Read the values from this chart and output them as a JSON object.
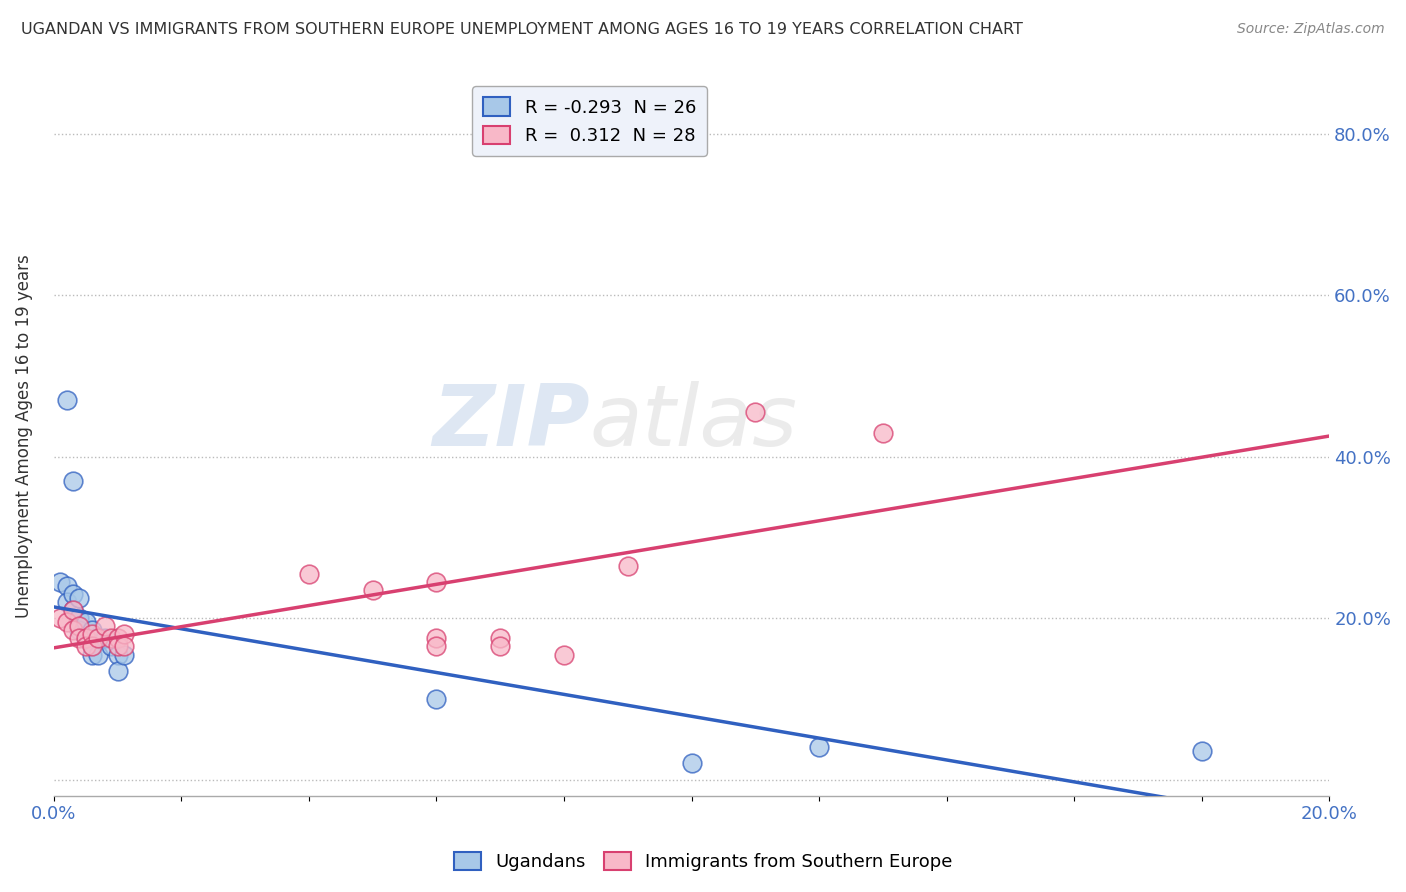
{
  "title": "UGANDAN VS IMMIGRANTS FROM SOUTHERN EUROPE UNEMPLOYMENT AMONG AGES 16 TO 19 YEARS CORRELATION CHART",
  "source": "Source: ZipAtlas.com",
  "ylabel": "Unemployment Among Ages 16 to 19 years",
  "y_tick_labels": [
    "",
    "20.0%",
    "40.0%",
    "60.0%",
    "80.0%"
  ],
  "y_tick_positions": [
    0.0,
    0.2,
    0.4,
    0.6,
    0.8
  ],
  "x_lim": [
    0.0,
    0.2
  ],
  "y_lim": [
    -0.02,
    0.87
  ],
  "ugandan_color": "#a8c8e8",
  "immigrant_color": "#f8b8c8",
  "ugandan_line_color": "#3060c0",
  "immigrant_line_color": "#d84070",
  "ugandan_points": [
    [
      0.001,
      0.245
    ],
    [
      0.002,
      0.24
    ],
    [
      0.002,
      0.22
    ],
    [
      0.003,
      0.23
    ],
    [
      0.003,
      0.21
    ],
    [
      0.004,
      0.225
    ],
    [
      0.004,
      0.2
    ],
    [
      0.004,
      0.185
    ],
    [
      0.005,
      0.195
    ],
    [
      0.005,
      0.175
    ],
    [
      0.006,
      0.185
    ],
    [
      0.006,
      0.165
    ],
    [
      0.006,
      0.155
    ],
    [
      0.007,
      0.175
    ],
    [
      0.007,
      0.155
    ],
    [
      0.008,
      0.175
    ],
    [
      0.009,
      0.165
    ],
    [
      0.01,
      0.155
    ],
    [
      0.01,
      0.135
    ],
    [
      0.011,
      0.155
    ],
    [
      0.002,
      0.47
    ],
    [
      0.003,
      0.37
    ],
    [
      0.06,
      0.1
    ],
    [
      0.1,
      0.02
    ],
    [
      0.12,
      0.04
    ],
    [
      0.18,
      0.035
    ]
  ],
  "immigrant_points": [
    [
      0.001,
      0.2
    ],
    [
      0.002,
      0.195
    ],
    [
      0.003,
      0.21
    ],
    [
      0.003,
      0.185
    ],
    [
      0.004,
      0.19
    ],
    [
      0.004,
      0.175
    ],
    [
      0.005,
      0.175
    ],
    [
      0.005,
      0.165
    ],
    [
      0.006,
      0.18
    ],
    [
      0.006,
      0.165
    ],
    [
      0.007,
      0.175
    ],
    [
      0.008,
      0.19
    ],
    [
      0.009,
      0.175
    ],
    [
      0.01,
      0.175
    ],
    [
      0.01,
      0.165
    ],
    [
      0.011,
      0.18
    ],
    [
      0.011,
      0.165
    ],
    [
      0.04,
      0.255
    ],
    [
      0.05,
      0.235
    ],
    [
      0.06,
      0.175
    ],
    [
      0.06,
      0.165
    ],
    [
      0.06,
      0.245
    ],
    [
      0.07,
      0.175
    ],
    [
      0.07,
      0.165
    ],
    [
      0.08,
      0.155
    ],
    [
      0.09,
      0.265
    ],
    [
      0.11,
      0.455
    ],
    [
      0.13,
      0.43
    ]
  ],
  "ugandan_R": -0.293,
  "ugandan_N": 26,
  "immigrant_R": 0.312,
  "immigrant_N": 28
}
